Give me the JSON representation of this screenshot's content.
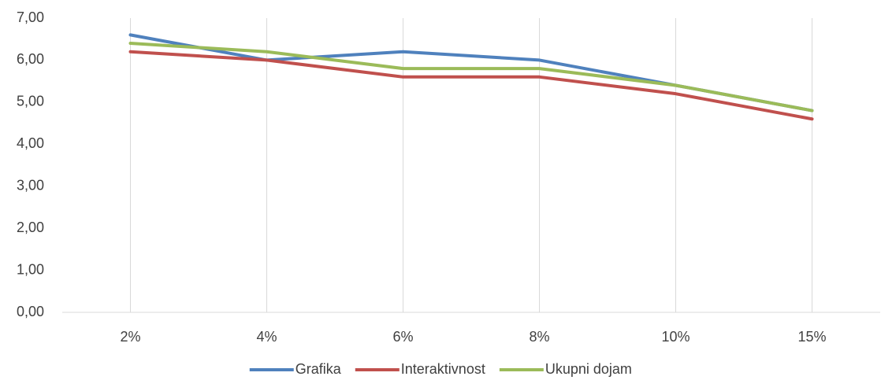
{
  "chart_data": {
    "type": "line",
    "categories": [
      "2%",
      "4%",
      "6%",
      "8%",
      "10%",
      "15%"
    ],
    "series": [
      {
        "name": "Grafika",
        "color": "#4f81bd",
        "values": [
          6.6,
          6.0,
          6.2,
          6.0,
          5.4,
          4.8
        ]
      },
      {
        "name": "Interaktivnost",
        "color": "#c0504d",
        "values": [
          6.2,
          6.0,
          5.6,
          5.6,
          5.2,
          4.6
        ]
      },
      {
        "name": "Ukupni dojam",
        "color": "#9bbb59",
        "values": [
          6.4,
          6.2,
          5.8,
          5.8,
          5.4,
          4.8
        ]
      }
    ],
    "ylim": [
      0,
      7
    ],
    "yticks": [
      {
        "value": 0,
        "label": "0,00"
      },
      {
        "value": 1,
        "label": "1,00"
      },
      {
        "value": 2,
        "label": "2,00"
      },
      {
        "value": 3,
        "label": "3,00"
      },
      {
        "value": 4,
        "label": "4,00"
      },
      {
        "value": 5,
        "label": "5,00"
      },
      {
        "value": 6,
        "label": "6,00"
      },
      {
        "value": 7,
        "label": "7,00"
      }
    ],
    "legend": "bottom"
  }
}
